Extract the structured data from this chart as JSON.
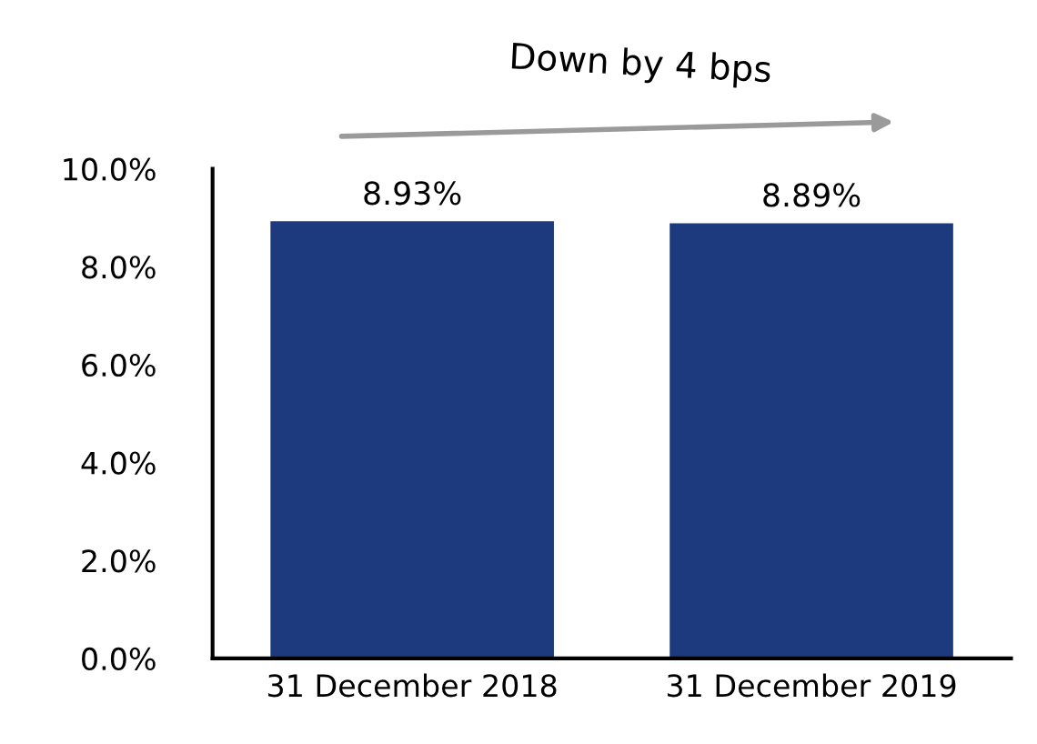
{
  "chart_data": {
    "type": "bar",
    "categories": [
      "31 December 2018",
      "31 December 2019"
    ],
    "values": [
      8.93,
      8.89
    ],
    "value_labels": [
      "8.93%",
      "8.89%"
    ],
    "color": "#1e3a7e",
    "ylim": [
      0,
      10
    ],
    "yticks": [
      {
        "value": 0,
        "label": "0.0%"
      },
      {
        "value": 2,
        "label": "2.0%"
      },
      {
        "value": 4,
        "label": "4.0%"
      },
      {
        "value": 6,
        "label": "6.0%"
      },
      {
        "value": 8,
        "label": "8.0%"
      },
      {
        "value": 10,
        "label": "10.0%"
      }
    ],
    "grid": false,
    "legend": false,
    "annotations": [
      "Down by 4 bps"
    ]
  }
}
